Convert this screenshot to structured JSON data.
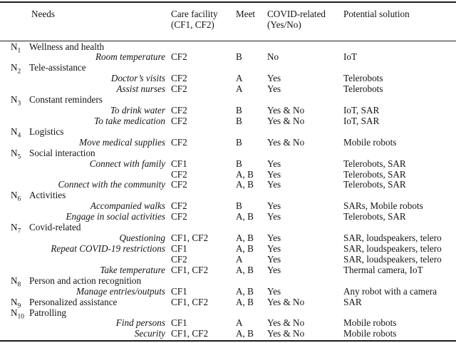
{
  "header": {
    "needs": "Needs",
    "care_facility": "Care facility\n(CF1, CF2)",
    "meet": "Meet",
    "covid": "COVID-related\n(Yes/No)",
    "solution": "Potential solution"
  },
  "rows": [
    {
      "n": "N",
      "nsub": "1",
      "label": "Wellness and health"
    },
    {
      "need": "Room temperature",
      "cf": "CF2",
      "meet": "B",
      "covid": "No",
      "solution": "IoT"
    },
    {
      "n": "N",
      "nsub": "2",
      "label": "Tele-assistance"
    },
    {
      "need": "Doctor’s visits",
      "cf": "CF2",
      "meet": "A",
      "covid": "Yes",
      "solution": "Telerobots"
    },
    {
      "need": "Assist nurses",
      "cf": "CF2",
      "meet": "A",
      "covid": "Yes",
      "solution": "Telerobots"
    },
    {
      "n": "N",
      "nsub": "3",
      "label": "Constant reminders"
    },
    {
      "need": "To drink water",
      "cf": "CF2",
      "meet": "B",
      "covid": "Yes & No",
      "solution": "IoT, SAR"
    },
    {
      "need": "To take medication",
      "cf": "CF2",
      "meet": "B",
      "covid": "Yes & No",
      "solution": "IoT, SAR"
    },
    {
      "n": "N",
      "nsub": "4",
      "label": "Logistics"
    },
    {
      "need": "Move medical supplies",
      "cf": "CF2",
      "meet": "B",
      "covid": "Yes & No",
      "solution": "Mobile robots"
    },
    {
      "n": "N",
      "nsub": "5",
      "label": "Social interaction"
    },
    {
      "need": "Connect with family",
      "cf": "CF1",
      "meet": "B",
      "covid": "Yes",
      "solution": "Telerobots, SAR"
    },
    {
      "cf": "CF2",
      "meet": "A, B",
      "covid": "Yes",
      "solution": "Telerobots, SAR"
    },
    {
      "need": "Connect with the community",
      "cf": "CF2",
      "meet": "A, B",
      "covid": "Yes",
      "solution": "Telerobots, SAR"
    },
    {
      "n": "N",
      "nsub": "6",
      "label": "Activities"
    },
    {
      "need": "Accompanied walks",
      "cf": "CF2",
      "meet": "B",
      "covid": "Yes",
      "solution": "SARs, Mobile robots"
    },
    {
      "need": "Engage in social activities",
      "cf": "CF2",
      "meet": "A, B",
      "covid": "Yes",
      "solution": "Telerobots, SAR"
    },
    {
      "n": "N",
      "nsub": "7",
      "label": "Covid-related"
    },
    {
      "need": "Questioning",
      "cf": "CF1, CF2",
      "meet": "A, B",
      "covid": "Yes",
      "solution": "SAR, loudspeakers, telero"
    },
    {
      "need": "Repeat COVID-19 restrictions",
      "cf": "CF1",
      "meet": "A, B",
      "covid": "Yes",
      "solution": "SAR, loudspeakers, telero"
    },
    {
      "cf": "CF2",
      "meet": "A",
      "covid": "Yes",
      "solution": "SAR, loudspeakers, telero"
    },
    {
      "need": "Take temperature",
      "cf": "CF1, CF2",
      "meet": "A, B",
      "covid": "Yes",
      "solution": "Thermal camera, IoT"
    },
    {
      "n": "N",
      "nsub": "8",
      "label": "Person and action recognition"
    },
    {
      "need": "Manage entries/outputs",
      "cf": "CF1",
      "meet": "A, B",
      "covid": "Yes",
      "solution": "Any robot with a camera"
    },
    {
      "n": "N",
      "nsub": "9",
      "label": "Personalized assistance",
      "cf": "CF1, CF2",
      "meet": "A, B",
      "covid": "Yes & No",
      "solution": "SAR"
    },
    {
      "n": "N",
      "nsub": "10",
      "label": "Patrolling"
    },
    {
      "need": "Find persons",
      "cf": "CF1",
      "meet": "A",
      "covid": "Yes & No",
      "solution": "Mobile robots"
    },
    {
      "need": "Security",
      "cf": "CF1, CF2",
      "meet": "A, B",
      "covid": "Yes & No",
      "solution": "Mobile robots"
    }
  ]
}
